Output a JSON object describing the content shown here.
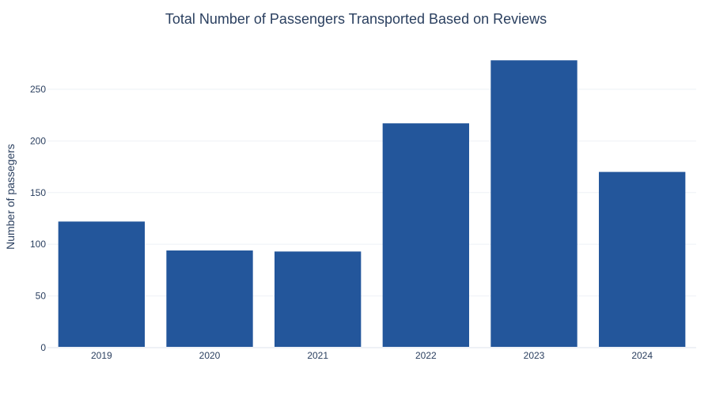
{
  "chart_data": {
    "type": "bar",
    "title": "Total Number of Passengers Transported Based on Reviews",
    "xlabel": "",
    "ylabel": "Number of passegers",
    "categories": [
      "2019",
      "2020",
      "2021",
      "2022",
      "2023",
      "2024"
    ],
    "values": [
      122,
      94,
      93,
      217,
      278,
      170
    ],
    "ylim": [
      0,
      292
    ],
    "yticks": [
      0,
      50,
      100,
      150,
      200,
      250
    ],
    "grid": true,
    "legend": "none",
    "bar_color": "#23569b",
    "grid_color": "#eef1f6",
    "text_color": "#2a3f5f"
  }
}
